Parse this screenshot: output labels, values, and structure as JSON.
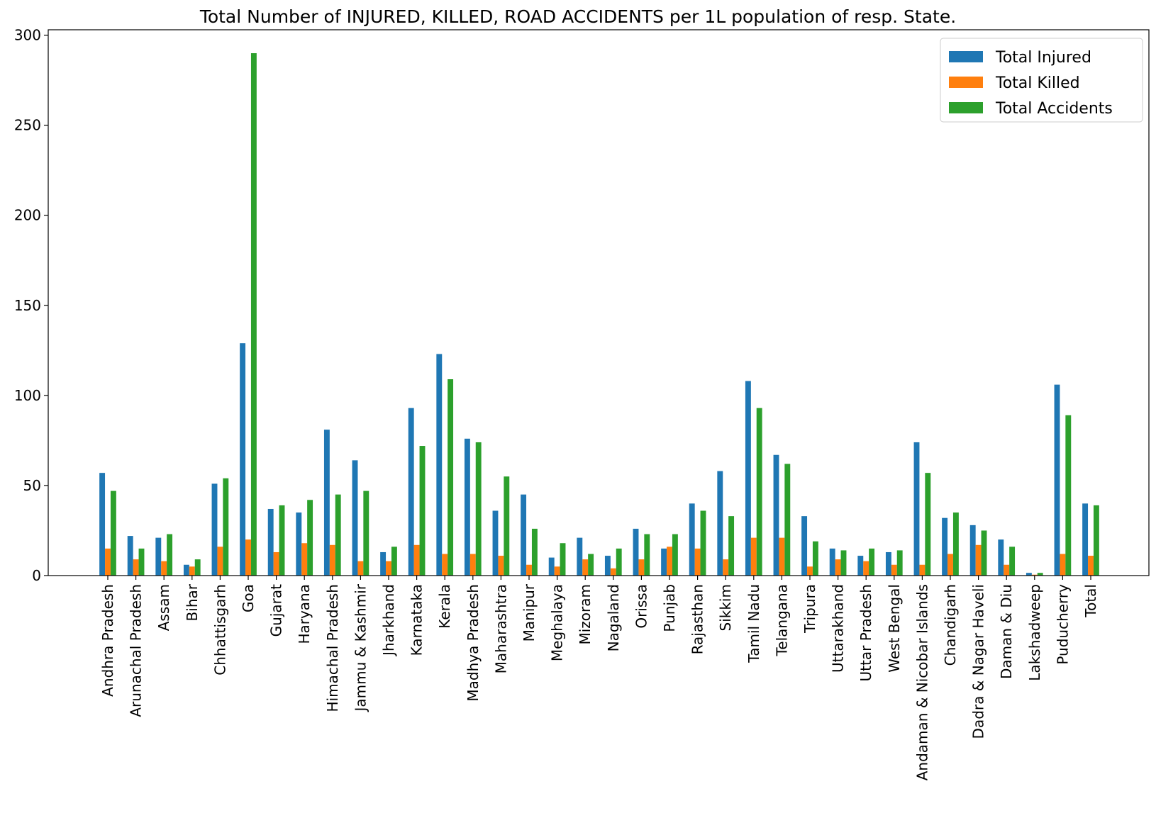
{
  "chart_data": {
    "type": "bar",
    "title": "Total Number of INJURED, KILLED, ROAD ACCIDENTS per 1L population of resp. State.",
    "xlabel": "",
    "ylabel": "",
    "ylim": [
      0,
      303
    ],
    "yticks": [
      0,
      50,
      100,
      150,
      200,
      250,
      300
    ],
    "grid": false,
    "legend_position": "top-right",
    "categories": [
      "Andhra Pradesh",
      "Arunachal Pradesh",
      "Assam",
      "Bihar",
      "Chhattisgarh",
      "Goa",
      "Gujarat",
      "Haryana",
      "Himachal Pradesh",
      "Jammu & Kashmir",
      "Jharkhand",
      "Karnataka",
      "Kerala",
      "Madhya Pradesh",
      "Maharashtra",
      "Manipur",
      "Meghalaya",
      "Mizoram",
      "Nagaland",
      "Orissa",
      "Punjab",
      "Rajasthan",
      "Sikkim",
      "Tamil Nadu",
      "Telangana",
      "Tripura",
      "Uttarakhand",
      "Uttar Pradesh",
      "West Bengal",
      "Andaman & Nicobar Islands",
      "Chandigarh",
      "Dadra & Nagar Haveli",
      "Daman & Diu",
      "Lakshadweep",
      "Puducherry",
      "Total"
    ],
    "series": [
      {
        "name": "Total Injured",
        "color": "#1f77b4",
        "values": [
          57,
          22,
          21,
          6,
          51,
          129,
          37,
          35,
          81,
          64,
          13,
          93,
          123,
          76,
          36,
          45,
          10,
          21,
          11,
          26,
          15,
          40,
          58,
          108,
          67,
          33,
          15,
          11,
          13,
          74,
          32,
          28,
          20,
          1.5,
          106,
          40
        ]
      },
      {
        "name": "Total Killed",
        "color": "#ff7f0e",
        "values": [
          15,
          9,
          8,
          5,
          16,
          20,
          13,
          18,
          17,
          8,
          8,
          17,
          12,
          12,
          11,
          6,
          5,
          9,
          4,
          9,
          16,
          15,
          9,
          21,
          21,
          5,
          9,
          8,
          6,
          6,
          12,
          17,
          6,
          0.5,
          12,
          11
        ]
      },
      {
        "name": "Total Accidents",
        "color": "#2ca02c",
        "values": [
          47,
          15,
          23,
          9,
          54,
          290,
          39,
          42,
          45,
          47,
          16,
          72,
          109,
          74,
          55,
          26,
          18,
          12,
          15,
          23,
          23,
          36,
          33,
          93,
          62,
          19,
          14,
          15,
          14,
          57,
          35,
          25,
          16,
          1.5,
          89,
          39
        ]
      }
    ]
  }
}
